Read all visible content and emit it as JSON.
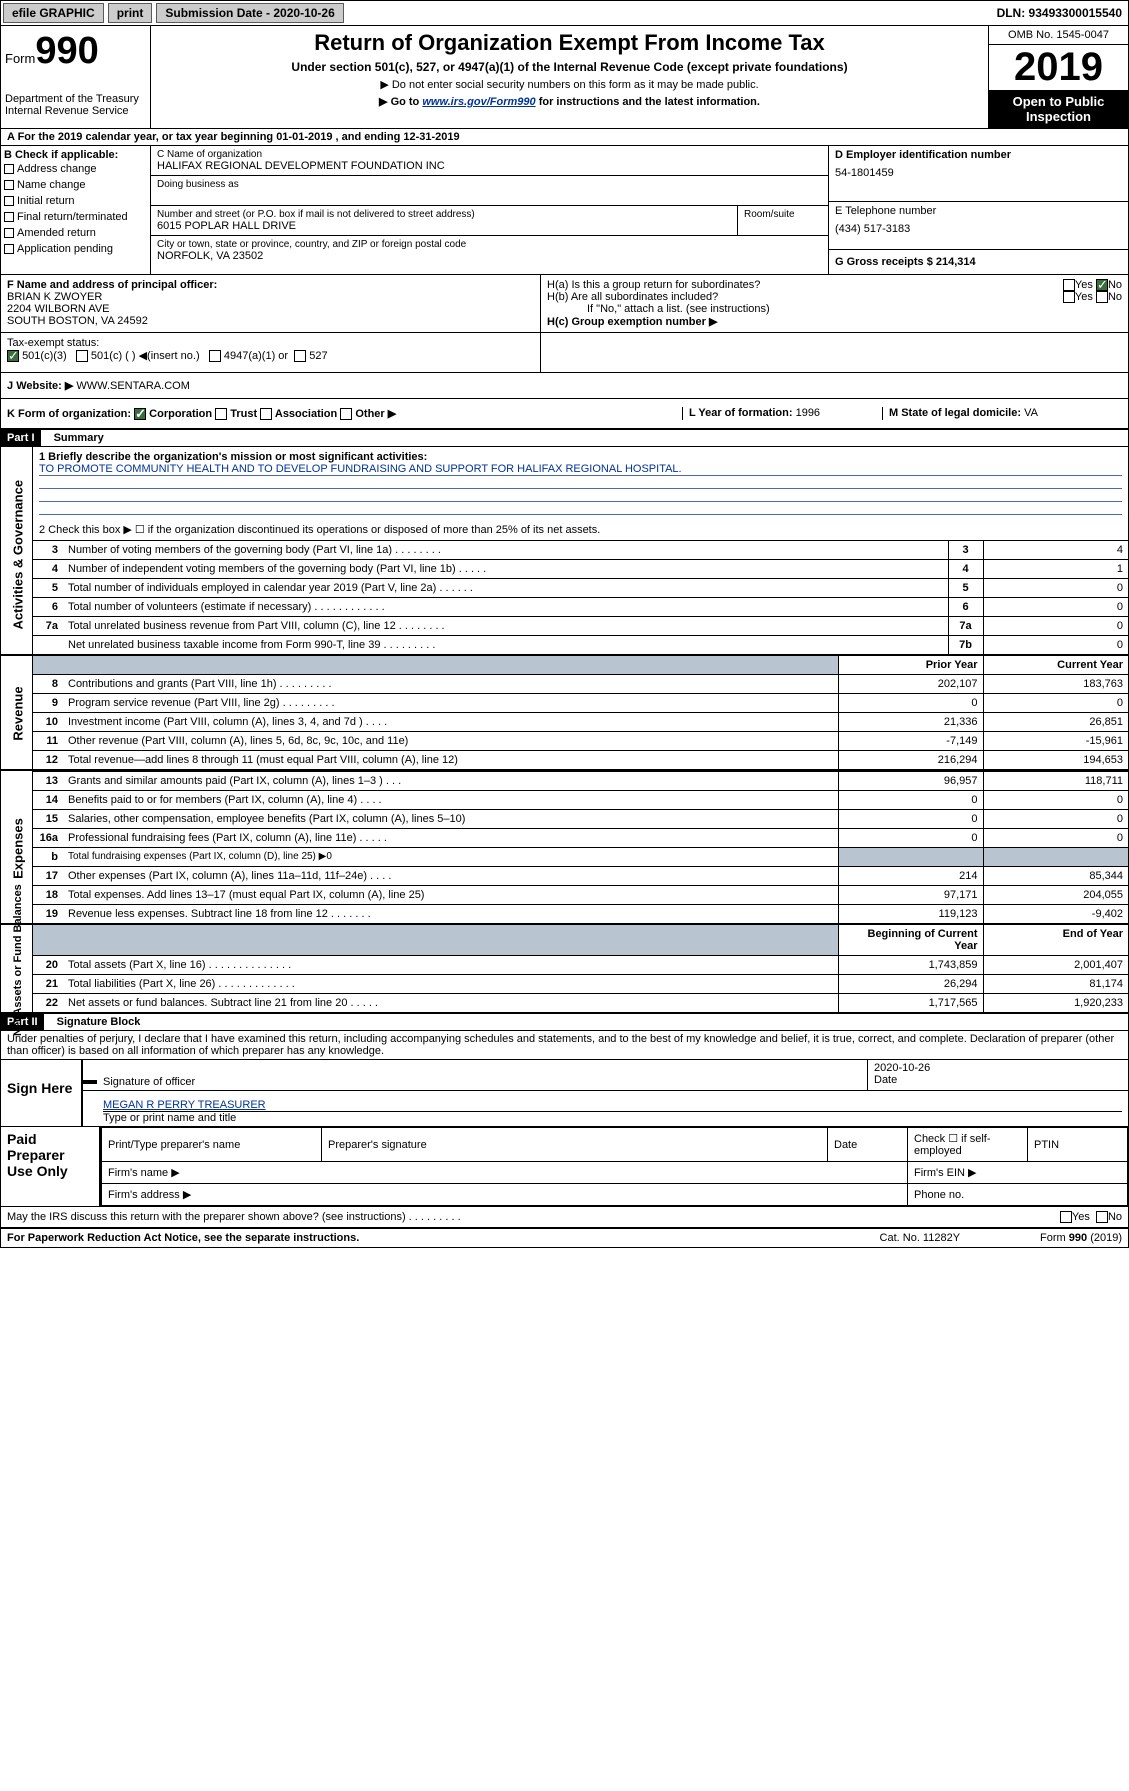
{
  "topbar": {
    "efile": "efile GRAPHIC",
    "print": "print",
    "submission": "Submission Date - 2020-10-26",
    "dln": "DLN: 93493300015540"
  },
  "header": {
    "form_prefix": "Form",
    "form_no": "990",
    "title": "Return of Organization Exempt From Income Tax",
    "subtitle": "Under section 501(c), 527, or 4947(a)(1) of the Internal Revenue Code (except private foundations)",
    "note1": "▶ Do not enter social security numbers on this form as it may be made public.",
    "note2a": "▶ Go to ",
    "note2b": "www.irs.gov/Form990",
    "note2c": " for instructions and the latest information.",
    "dept": "Department of the Treasury\nInternal Revenue Service",
    "omb": "OMB No. 1545-0047",
    "year": "2019",
    "inspection": "Open to Public Inspection"
  },
  "period": "A For the 2019 calendar year, or tax year beginning 01-01-2019    , and ending 12-31-2019",
  "boxB": {
    "title": "B Check if applicable:",
    "items": [
      "Address change",
      "Name change",
      "Initial return",
      "Final return/terminated",
      "Amended return",
      "Application pending"
    ]
  },
  "boxC": {
    "label_name": "C Name of organization",
    "name": "HALIFAX REGIONAL DEVELOPMENT FOUNDATION INC",
    "dba_label": "Doing business as",
    "dba": "",
    "addr_label": "Number and street (or P.O. box if mail is not delivered to street address)",
    "addr": "6015 POPLAR HALL DRIVE",
    "room_label": "Room/suite",
    "city_label": "City or town, state or province, country, and ZIP or foreign postal code",
    "city": "NORFOLK, VA  23502"
  },
  "boxD": {
    "label": "D Employer identification number",
    "value": "54-1801459"
  },
  "boxE": {
    "label": "E Telephone number",
    "value": "(434) 517-3183"
  },
  "boxG": {
    "label": "G Gross receipts $",
    "value": "214,314"
  },
  "boxF": {
    "label": "F  Name and address of principal officer:",
    "name": "BRIAN K ZWOYER",
    "addr1": "2204 WILBORN AVE",
    "addr2": "SOUTH BOSTON, VA  24592"
  },
  "boxH": {
    "a": "H(a)  Is this a group return for subordinates?",
    "b": "H(b)  Are all subordinates included?",
    "note": "If \"No,\" attach a list. (see instructions)",
    "c": "H(c)  Group exemption number ▶"
  },
  "taxexempt": {
    "label": "Tax-exempt status:",
    "opt1": "501(c)(3)",
    "opt2": "501(c) (   ) ◀(insert no.)",
    "opt3": "4947(a)(1) or",
    "opt4": "527"
  },
  "boxJ": {
    "label": "J",
    "text": "Website: ▶",
    "value": "  WWW.SENTARA.COM"
  },
  "boxK": {
    "text": "K Form of organization:",
    "opts": [
      "Corporation",
      "Trust",
      "Association",
      "Other ▶"
    ]
  },
  "boxL": {
    "label": "L Year of formation:",
    "value": "1996"
  },
  "boxM": {
    "label": "M State of legal domicile:",
    "value": "VA"
  },
  "partI": {
    "hdr": "Part I",
    "sub": "Summary"
  },
  "summary": {
    "l1_label": "1  Briefly describe the organization's mission or most significant activities:",
    "l1_text": "TO PROMOTE COMMUNITY HEALTH AND TO DEVELOP FUNDRAISING AND SUPPORT FOR HALIFAX REGIONAL HOSPITAL.",
    "l2": "2   Check this box ▶ ☐  if the organization discontinued its operations or disposed of more than 25% of its net assets.",
    "rows_ag": [
      {
        "n": "3",
        "t": "Number of voting members of the governing body (Part VI, line 1a)  .   .   .   .   .   .   .   .",
        "k": "3",
        "v": "4"
      },
      {
        "n": "4",
        "t": "Number of independent voting members of the governing body (Part VI, line 1b)  .   .   .   .   .",
        "k": "4",
        "v": "1"
      },
      {
        "n": "5",
        "t": "Total number of individuals employed in calendar year 2019 (Part V, line 2a)  .   .   .   .   .   .",
        "k": "5",
        "v": "0"
      },
      {
        "n": "6",
        "t": "Total number of volunteers (estimate if necessary)  .   .   .   .   .   .   .   .   .   .   .   .",
        "k": "6",
        "v": "0"
      },
      {
        "n": "7a",
        "t": "Total unrelated business revenue from Part VIII, column (C), line 12  .   .   .   .   .   .   .   .",
        "k": "7a",
        "v": "0"
      },
      {
        "n": "",
        "t": "Net unrelated business taxable income from Form 990-T, line 39  .   .   .   .   .   .   .   .   .",
        "k": "7b",
        "v": "0"
      }
    ],
    "col_prior": "Prior Year",
    "col_current": "Current Year",
    "rows_rev": [
      {
        "n": "8",
        "t": "Contributions and grants (Part VIII, line 1h)  .   .   .   .   .   .   .   .   .",
        "p": "202,107",
        "c": "183,763"
      },
      {
        "n": "9",
        "t": "Program service revenue (Part VIII, line 2g)  .   .   .   .   .   .   .   .   .",
        "p": "0",
        "c": "0"
      },
      {
        "n": "10",
        "t": "Investment income (Part VIII, column (A), lines 3, 4, and 7d )  .   .   .   .",
        "p": "21,336",
        "c": "26,851"
      },
      {
        "n": "11",
        "t": "Other revenue (Part VIII, column (A), lines 5, 6d, 8c, 9c, 10c, and 11e)",
        "p": "-7,149",
        "c": "-15,961"
      },
      {
        "n": "12",
        "t": "Total revenue—add lines 8 through 11 (must equal Part VIII, column (A), line 12)",
        "p": "216,294",
        "c": "194,653"
      }
    ],
    "rows_exp": [
      {
        "n": "13",
        "t": "Grants and similar amounts paid (Part IX, column (A), lines 1–3 )  .   .   .",
        "p": "96,957",
        "c": "118,711"
      },
      {
        "n": "14",
        "t": "Benefits paid to or for members (Part IX, column (A), line 4)  .   .   .   .",
        "p": "0",
        "c": "0"
      },
      {
        "n": "15",
        "t": "Salaries, other compensation, employee benefits (Part IX, column (A), lines 5–10)",
        "p": "0",
        "c": "0"
      },
      {
        "n": "16a",
        "t": "Professional fundraising fees (Part IX, column (A), line 11e)  .   .   .   .   .",
        "p": "0",
        "c": "0"
      },
      {
        "n": "b",
        "t": "Total fundraising expenses (Part IX, column (D), line 25) ▶0",
        "p": "",
        "c": "",
        "shade": true,
        "small": true
      },
      {
        "n": "17",
        "t": "Other expenses (Part IX, column (A), lines 11a–11d, 11f–24e)  .   .   .   .",
        "p": "214",
        "c": "85,344"
      },
      {
        "n": "18",
        "t": "Total expenses. Add lines 13–17 (must equal Part IX, column (A), line 25)",
        "p": "97,171",
        "c": "204,055"
      },
      {
        "n": "19",
        "t": "Revenue less expenses. Subtract line 18 from line 12  .   .   .   .   .   .   .",
        "p": "119,123",
        "c": "-9,402"
      }
    ],
    "col_beg": "Beginning of Current Year",
    "col_end": "End of Year",
    "rows_net": [
      {
        "n": "20",
        "t": "Total assets (Part X, line 16)  .   .   .   .   .   .   .   .   .   .   .   .   .   .",
        "p": "1,743,859",
        "c": "2,001,407"
      },
      {
        "n": "21",
        "t": "Total liabilities (Part X, line 26)  .   .   .   .   .   .   .   .   .   .   .   .   .",
        "p": "26,294",
        "c": "81,174"
      },
      {
        "n": "22",
        "t": "Net assets or fund balances. Subtract line 21 from line 20  .   .   .   .   .",
        "p": "1,717,565",
        "c": "1,920,233"
      }
    ]
  },
  "sidelabels": {
    "ag": "Activities & Governance",
    "rev": "Revenue",
    "exp": "Expenses",
    "net": "Net Assets or Fund Balances"
  },
  "partII": {
    "hdr": "Part II",
    "sub": "Signature Block"
  },
  "perjury": "Under penalties of perjury, I declare that I have examined this return, including accompanying schedules and statements, and to the best of my knowledge and belief, it is true, correct, and complete. Declaration of preparer (other than officer) is based on all information of which preparer has any knowledge.",
  "sign": {
    "here": "Sign Here",
    "sig_of_officer": "Signature of officer",
    "date": "Date",
    "date_val": "2020-10-26",
    "name": "MEGAN R PERRY  TREASURER",
    "type_name": "Type or print name and title"
  },
  "preparer": {
    "label": "Paid Preparer Use Only",
    "cols": [
      "Print/Type preparer's name",
      "Preparer's signature",
      "Date",
      "",
      "PTIN"
    ],
    "check": "Check ☐ if self-employed",
    "firm_name": "Firm's name   ▶",
    "firm_ein": "Firm's EIN ▶",
    "firm_addr": "Firm's address ▶",
    "phone": "Phone no."
  },
  "discuss": "May the IRS discuss this return with the preparer shown above? (see instructions)   .   .   .   .   .   .   .   .   .",
  "footer": {
    "left": "For Paperwork Reduction Act Notice, see the separate instructions.",
    "mid": "Cat. No. 11282Y",
    "right": "Form 990 (2019)"
  }
}
